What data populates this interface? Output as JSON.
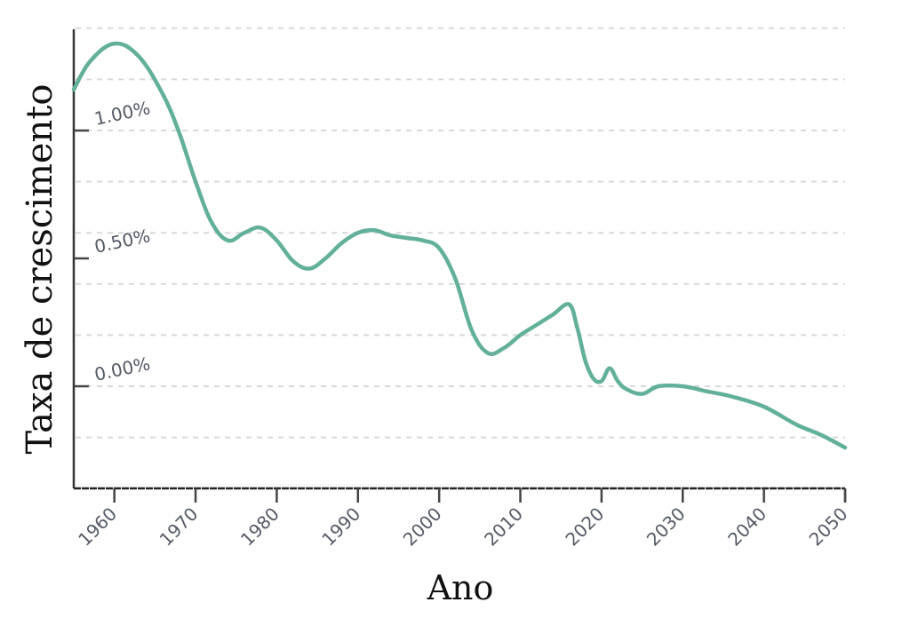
{
  "chart_data": {
    "type": "line",
    "title": "",
    "xlabel": "Ano",
    "ylabel": "Taxa de crescimento",
    "xlim": [
      1955,
      2050
    ],
    "ylim": [
      -0.4,
      1.45
    ],
    "grid": {
      "horizontal": true,
      "vertical": false,
      "style": "dashed",
      "values": [
        1.4,
        1.2,
        1.0,
        0.8,
        0.6,
        0.4,
        0.2,
        0.0,
        -0.2
      ]
    },
    "x_ticks": [
      1960,
      1970,
      1980,
      1990,
      2000,
      2010,
      2020,
      2030,
      2040,
      2050
    ],
    "x_tick_labels": [
      "1960",
      "1970",
      "1980",
      "1990",
      "2000",
      "2010",
      "2020",
      "2030",
      "2040",
      "2050"
    ],
    "y_ticks": [
      0.0,
      0.5,
      1.0
    ],
    "y_tick_labels": [
      "0.00%",
      "0.50%",
      "1.00%"
    ],
    "legend": null,
    "series": [
      {
        "name": "Taxa de crescimento",
        "color": "#62b09a",
        "x": [
          1955,
          1957,
          1960,
          1963,
          1966,
          1968,
          1970,
          1972,
          1974,
          1976,
          1978,
          1980,
          1982,
          1984,
          1986,
          1988,
          1990,
          1992,
          1994,
          1996,
          1998,
          2000,
          2002,
          2004,
          2006,
          2008,
          2010,
          2012,
          2014,
          2016,
          2017,
          2018,
          2019,
          2020,
          2021,
          2022,
          2023,
          2025,
          2027,
          2030,
          2033,
          2036,
          2040,
          2044,
          2047,
          2050
        ],
        "values": [
          1.16,
          1.27,
          1.34,
          1.29,
          1.14,
          0.99,
          0.8,
          0.64,
          0.57,
          0.6,
          0.62,
          0.57,
          0.49,
          0.46,
          0.5,
          0.56,
          0.6,
          0.61,
          0.59,
          0.58,
          0.57,
          0.54,
          0.42,
          0.22,
          0.13,
          0.15,
          0.2,
          0.24,
          0.28,
          0.32,
          0.23,
          0.1,
          0.03,
          0.02,
          0.07,
          0.02,
          -0.01,
          -0.03,
          0.0,
          0.0,
          -0.02,
          -0.04,
          -0.08,
          -0.15,
          -0.19,
          -0.24
        ]
      }
    ]
  },
  "axes": {
    "xlabel": "Ano",
    "ylabel": "Taxa de crescimento"
  }
}
